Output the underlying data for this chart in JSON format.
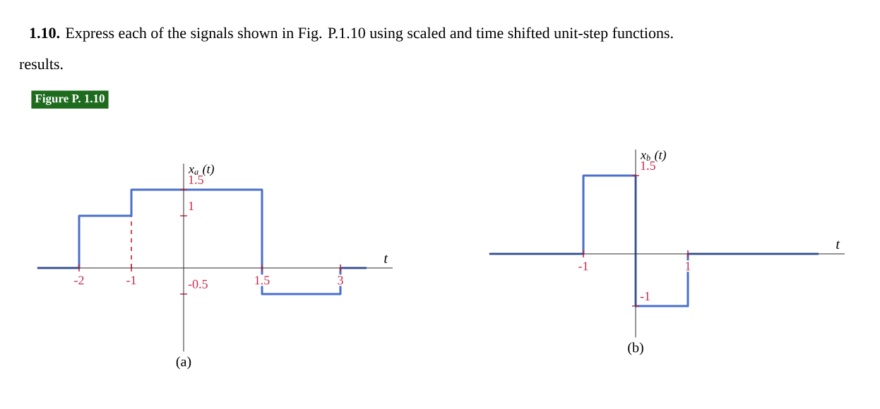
{
  "chart_data": [
    {
      "type": "step",
      "title": "(a)",
      "xlabel": "t",
      "ylabel": "x$_{a}$ (t)",
      "annotations": [
        "**1.10.** Express each of the signals shown in Fig. P.1.10 using scaled and time shifted unit-step functions.",
        "results.",
        "Figure P. 1.10"
      ],
      "x": [
        -2.8,
        -2,
        -1,
        1.5,
        3,
        3.5
      ],
      "values": [
        0,
        1,
        1.5,
        -0.5,
        0,
        0
      ],
      "color": "#4a6fcb",
      "xlim": [
        -2.8,
        4
      ],
      "ylim": [
        -1.6,
        2
      ],
      "xticks": [
        -2,
        -1,
        1.5,
        3
      ],
      "yticks": [
        -0.5,
        1,
        1.5
      ],
      "ref_lines": [
        {
          "axis": "x",
          "value": -1,
          "color": "#d0304a",
          "line_style": "dashed"
        }
      ]
    },
    {
      "type": "step",
      "title": "(b)",
      "xlabel": "t",
      "ylabel": "x$_{b}$ (t)",
      "x": [
        -2.8,
        -1,
        0,
        1,
        3.5
      ],
      "values": [
        0,
        1.5,
        -1,
        0,
        0
      ],
      "color": "#4a6fcb",
      "xlim": [
        -2.8,
        4
      ],
      "ylim": [
        -1.6,
        2
      ],
      "xticks": [
        -1,
        1
      ],
      "yticks": [
        -1,
        1.5
      ]
    }
  ]
}
